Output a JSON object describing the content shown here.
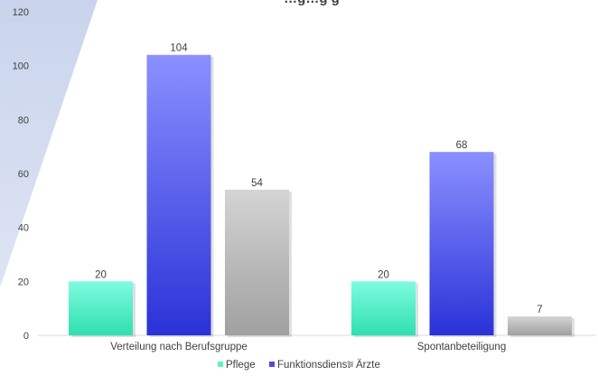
{
  "chart_data": {
    "type": "bar",
    "title": "…g…g g",
    "categories": [
      "Verteilung nach Berufsgruppe",
      "Spontanbeteiligung"
    ],
    "series": [
      {
        "name": "Pflege",
        "values": [
          20,
          20
        ],
        "color": "#5ff0c8"
      },
      {
        "name": "Funktionsdienst",
        "values": [
          104,
          68
        ],
        "color": "#4b50dc"
      },
      {
        "name": "Ärzte",
        "values": [
          54,
          7
        ],
        "color": "#b4b4b4"
      }
    ],
    "ylim": [
      0,
      120
    ],
    "yticks": [
      0,
      20,
      40,
      60,
      80,
      100,
      120
    ],
    "grid": false,
    "legend_position": "bottom",
    "data_labels": true
  }
}
